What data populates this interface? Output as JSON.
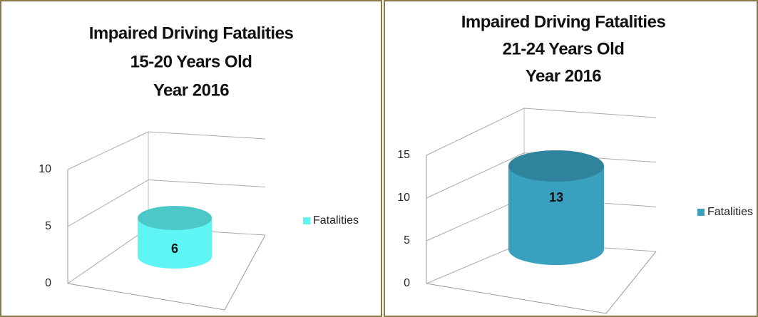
{
  "chart_data": [
    {
      "type": "bar3d",
      "title": [
        "Impaired Driving Fatalities",
        "15-20 Years Old",
        "Year 2016"
      ],
      "categories": [
        null
      ],
      "series": [
        {
          "name": "Fatalities",
          "color": "#5ff5f5",
          "values": [
            6
          ]
        }
      ],
      "ylim": [
        0,
        10
      ],
      "yticks": [
        0,
        5,
        10
      ],
      "grid": true,
      "legend": "right"
    },
    {
      "type": "bar3d",
      "title": [
        "Impaired Driving Fatalities",
        "21-24 Years Old",
        "Year 2016"
      ],
      "categories": [
        null
      ],
      "series": [
        {
          "name": "Fatalities",
          "color": "#3aa0c0",
          "values": [
            13
          ]
        }
      ],
      "ylim": [
        0,
        15
      ],
      "yticks": [
        0,
        5,
        10,
        15
      ],
      "grid": true,
      "legend": "right"
    }
  ]
}
